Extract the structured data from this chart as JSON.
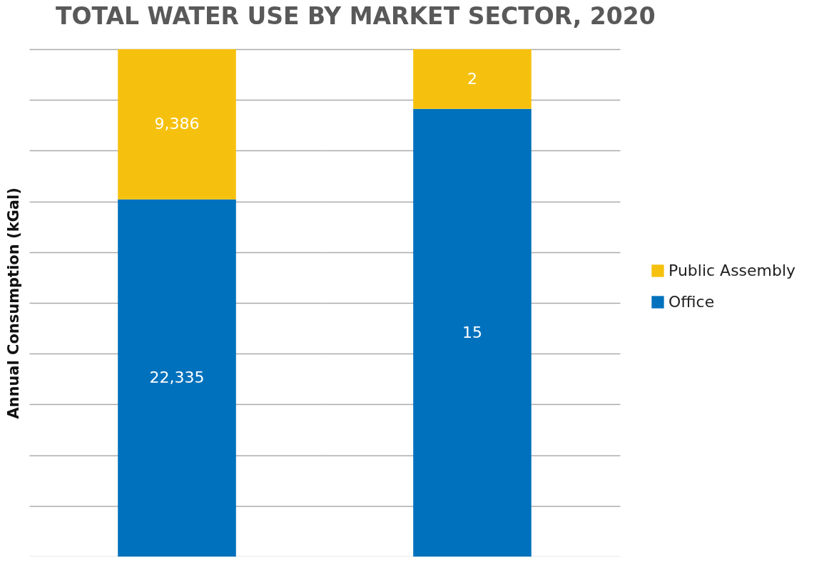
{
  "chart_data": [
    {
      "type": "bar",
      "title": "TOTAL WATER USE BY MARKET SECTOR, 2020",
      "ylabel": "Annual Consumption (kGal)",
      "categories": [
        null
      ],
      "stacked": true,
      "grid": "y",
      "tick_labels": false,
      "legend": "right",
      "ylim": [
        0,
        31721
      ],
      "yticks": [
        {
          "value": 0,
          "label": null
        },
        {
          "value": 3172.1,
          "label": null
        },
        {
          "value": 6344.2,
          "label": null
        },
        {
          "value": 9516.3,
          "label": null
        },
        {
          "value": 12688.4,
          "label": null
        },
        {
          "value": 15860.5,
          "label": null
        },
        {
          "value": 19032.6,
          "label": null
        },
        {
          "value": 22204.7,
          "label": null
        },
        {
          "value": 25376.8,
          "label": null
        },
        {
          "value": 28548.9,
          "label": null
        },
        {
          "value": 31721,
          "label": null
        }
      ],
      "series": [
        {
          "name": "Office",
          "color": "#0071bc",
          "values": [
            22335
          ],
          "value_labels": [
            "22,335"
          ]
        },
        {
          "name": "Public Assembly",
          "color": "#f6c10e",
          "values": [
            9386
          ],
          "value_labels": [
            "9,386"
          ]
        }
      ]
    },
    {
      "type": "bar",
      "categories": [
        null
      ],
      "stacked": true,
      "grid": "y",
      "tick_labels": false,
      "legend": "right",
      "ylim": [
        0,
        17
      ],
      "yticks": [
        {
          "value": 0,
          "label": null
        },
        {
          "value": 1.7,
          "label": null
        },
        {
          "value": 3.4,
          "label": null
        },
        {
          "value": 5.1,
          "label": null
        },
        {
          "value": 6.8,
          "label": null
        },
        {
          "value": 8.5,
          "label": null
        },
        {
          "value": 10.2,
          "label": null
        },
        {
          "value": 11.9,
          "label": null
        },
        {
          "value": 13.6,
          "label": null
        },
        {
          "value": 15.3,
          "label": null
        },
        {
          "value": 17,
          "label": null
        }
      ],
      "series": [
        {
          "name": "Office",
          "color": "#0071bc",
          "values": [
            15
          ],
          "value_labels": [
            "15"
          ]
        },
        {
          "name": "Public Assembly",
          "color": "#f6c10e",
          "values": [
            2
          ],
          "value_labels": [
            "2"
          ]
        }
      ]
    }
  ]
}
